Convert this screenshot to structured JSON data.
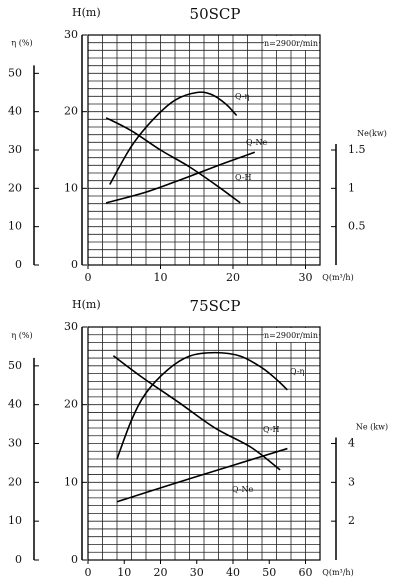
{
  "chart_data": [
    {
      "type": "line",
      "title": "50SCP",
      "annotation": "n=2900r/min",
      "x_label": "Q(m³/h)",
      "y_label": "H(m)",
      "y2_label": "η (%)",
      "y3_label": "Ne(kw)",
      "xlim": [
        0,
        32
      ],
      "xticks": [
        0,
        10,
        20,
        30
      ],
      "ylim": [
        0,
        30
      ],
      "yticks": [
        0,
        10,
        20,
        30
      ],
      "y2lim": [
        0,
        60
      ],
      "y2ticks": [
        0,
        10,
        20,
        30,
        40,
        50
      ],
      "y3lim": [
        0,
        3
      ],
      "y3ticks": [
        0.5,
        1,
        1.5
      ],
      "grid": true,
      "grid_step_x": 2,
      "grid_step_y": 1,
      "series": [
        {
          "name": "Q-η",
          "axis": "y2",
          "color": "#000000",
          "x": [
            3,
            6,
            9,
            12,
            15,
            17,
            19,
            20.5
          ],
          "values": [
            21,
            31,
            38,
            43,
            45,
            44.5,
            42,
            39
          ]
        },
        {
          "name": "Q-Ne",
          "axis": "y3",
          "color": "#000000",
          "x": [
            2.5,
            8,
            13,
            18,
            23
          ],
          "values": [
            0.81,
            0.95,
            1.12,
            1.3,
            1.47
          ]
        },
        {
          "name": "Q-H",
          "axis": "y",
          "color": "#000000",
          "x": [
            2.5,
            6,
            10,
            14,
            18,
            21
          ],
          "values": [
            19.2,
            17.5,
            15,
            12.8,
            10.2,
            8.1
          ]
        }
      ]
    },
    {
      "type": "line",
      "title": "75SCP",
      "annotation": "n=2900r/min",
      "x_label": "Q(m³/h)",
      "y_label": "H(m)",
      "y2_label": "η (%)",
      "y3_label": "Ne (kw)",
      "xlim": [
        0,
        64
      ],
      "xticks": [
        0,
        10,
        20,
        30,
        40,
        50,
        60
      ],
      "ylim": [
        0,
        30
      ],
      "yticks": [
        0,
        10,
        20,
        30
      ],
      "y2lim": [
        0,
        60
      ],
      "y2ticks": [
        0,
        10,
        20,
        30,
        40,
        50
      ],
      "y3lim": [
        1,
        7
      ],
      "y3ticks": [
        2,
        3,
        4
      ],
      "grid": true,
      "grid_step_x": 4,
      "grid_step_y": 1,
      "series": [
        {
          "name": "Q-η",
          "axis": "y2",
          "color": "#000000",
          "x": [
            8,
            12,
            16,
            22,
            28,
            35,
            42,
            48,
            52,
            55
          ],
          "values": [
            26,
            36,
            43,
            49,
            52.5,
            53.4,
            52.5,
            49.5,
            46.5,
            43.8
          ]
        },
        {
          "name": "Q-H",
          "axis": "y",
          "color": "#000000",
          "x": [
            7,
            15,
            25,
            35,
            45,
            53
          ],
          "values": [
            26.3,
            23.5,
            20.3,
            17,
            14.5,
            11.6
          ]
        },
        {
          "name": "Q-Ne",
          "axis": "y3",
          "color": "#000000",
          "x": [
            8,
            30,
            55
          ],
          "values": [
            2.5,
            3.15,
            3.87
          ]
        }
      ]
    }
  ]
}
